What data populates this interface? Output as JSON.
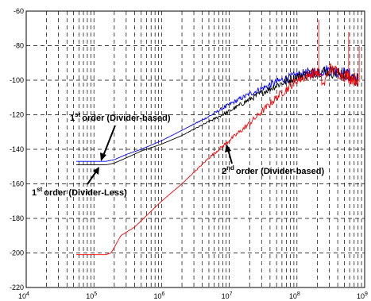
{
  "chart_data": {
    "type": "line",
    "title": "",
    "xlabel": "",
    "ylabel": "",
    "x_scale": "log",
    "xlim": [
      10000,
      1000000000
    ],
    "ylim": [
      -220,
      -60
    ],
    "grid": true,
    "x_ticks": [
      {
        "base": "10",
        "exp": "4"
      },
      {
        "base": "10",
        "exp": "5"
      },
      {
        "base": "10",
        "exp": "6"
      },
      {
        "base": "10",
        "exp": "7"
      },
      {
        "base": "10",
        "exp": "8"
      },
      {
        "base": "10",
        "exp": "9"
      }
    ],
    "y_ticks": [
      "-60",
      "-80",
      "-100",
      "-120",
      "-140",
      "-160",
      "-180",
      "-200",
      "-220"
    ],
    "series": [
      {
        "color": "#0000ff",
        "x": [
          55000,
          100000,
          150000,
          200000,
          300000,
          500000,
          1000000,
          2000000,
          5000000,
          10000000,
          20000000,
          50000000,
          100000000,
          200000000,
          300000000,
          500000000,
          800000000
        ],
        "y": [
          -147,
          -147,
          -147,
          -146,
          -143,
          -140,
          -135,
          -129,
          -121,
          -114,
          -108,
          -101,
          -97,
          -95,
          -94,
          -96,
          -99
        ]
      },
      {
        "color": "#000000",
        "x": [
          55000,
          100000,
          150000,
          200000,
          300000,
          500000,
          1000000,
          2000000,
          5000000,
          10000000,
          20000000,
          50000000,
          100000000,
          200000000,
          300000000,
          500000000,
          800000000
        ],
        "y": [
          -149,
          -149,
          -149,
          -148,
          -145,
          -141,
          -137,
          -132,
          -124,
          -118,
          -111,
          -103,
          -98,
          -95,
          -95,
          -97,
          -100
        ]
      },
      {
        "color": "#ff0000",
        "x": [
          55000,
          100000,
          150000,
          180000,
          250000,
          400000,
          1000000,
          2000000,
          5000000,
          10000000,
          20000000,
          50000000,
          100000000,
          200000000,
          250000000,
          300000000,
          500000000,
          800000000
        ],
        "y": [
          -201,
          -201,
          -201,
          -200,
          -190,
          -185,
          -170,
          -160,
          -145,
          -135,
          -125,
          -110,
          -100,
          -95,
          -103,
          -93,
          -97,
          -100
        ]
      }
    ],
    "annotations": [
      {
        "sup": "st",
        "pre": "1",
        "text": "order (Divider-based)"
      },
      {
        "sup": "st",
        "pre": "1",
        "text": "order (Divider-Less)"
      },
      {
        "sup": "nd",
        "pre": "2",
        "text": "order (Divider-based)"
      }
    ]
  }
}
